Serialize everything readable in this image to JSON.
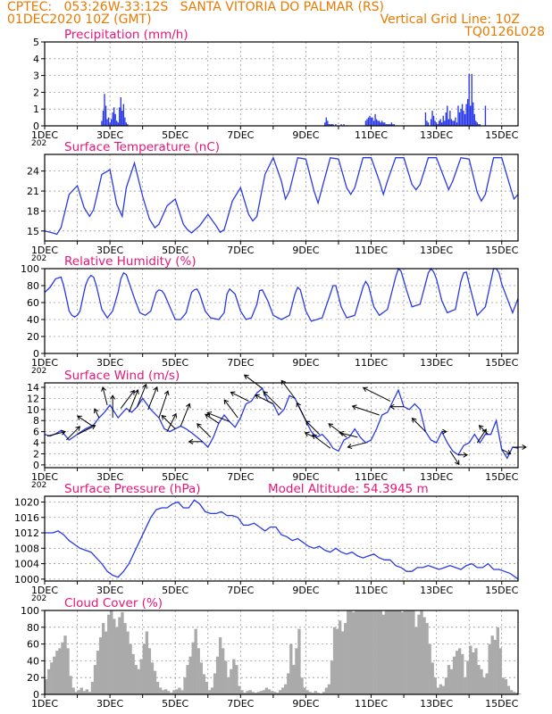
{
  "header": {
    "line1_left": "CPTEC:   053:26W-33:12S   SANTA VITORIA DO PALMAR (RS)",
    "line2_left": "01DEC2020 10Z (GMT)",
    "line2_right": "Vertical Grid Line: 10Z",
    "line3_right": "TQ0126L028"
  },
  "x_tick_labels": [
    "1DEC",
    "3DEC",
    "5DEC",
    "7DEC",
    "9DEC",
    "11DEC",
    "13DEC",
    "15DEC"
  ],
  "year_stub": "202",
  "colors": {
    "title": "#e8157a",
    "header": "#e87a00",
    "line": "#2a39e6",
    "cloud": "#aaaaaa",
    "arrow": "#000000"
  },
  "chart_data": [
    {
      "type": "bar",
      "id": "precip",
      "title": "Precipitation (mm/h)",
      "ylim": [
        0,
        5
      ],
      "yticks": [
        0,
        1,
        2,
        3,
        4,
        5
      ],
      "x_unit": "hours since 01DEC2020 10Z",
      "x": [
        42,
        43,
        44,
        45,
        46,
        47,
        48,
        49,
        50,
        51,
        52,
        53,
        54,
        55,
        56,
        57,
        58,
        59,
        60,
        61,
        206,
        207,
        208,
        209,
        210,
        211,
        212,
        214,
        218,
        220,
        236,
        237,
        238,
        239,
        240,
        241,
        242,
        243,
        244,
        245,
        246,
        247,
        248,
        249,
        250,
        251,
        252,
        253,
        254,
        255,
        256,
        257,
        280,
        281,
        282,
        284,
        285,
        286,
        287,
        288,
        289,
        290,
        291,
        292,
        293,
        294,
        295,
        296,
        297,
        298,
        299,
        300,
        301,
        302,
        303,
        304,
        305,
        306,
        307,
        308,
        309,
        310,
        311,
        312,
        313,
        314,
        315,
        316,
        317,
        318,
        319,
        320,
        324
      ],
      "values": [
        0.3,
        0.9,
        1.9,
        1.2,
        0.4,
        0.5,
        0.2,
        0.4,
        0.8,
        1.1,
        0.7,
        0.3,
        0.2,
        1.1,
        1.7,
        0.9,
        1.3,
        0.5,
        0.2,
        0.1,
        0.2,
        0.5,
        0.3,
        0.1,
        0.1,
        0.1,
        0.1,
        0.1,
        0.1,
        0.1,
        0.3,
        0.4,
        0.5,
        0.6,
        0.5,
        0.5,
        0.3,
        0.7,
        0.4,
        0.3,
        0.3,
        0.2,
        0.3,
        0.2,
        0.2,
        0.1,
        0.1,
        0.1,
        0.1,
        0.2,
        0.1,
        0.1,
        0.8,
        0.3,
        0.2,
        0.4,
        0.9,
        0.6,
        0.3,
        0.2,
        0.1,
        0.3,
        0.4,
        0.2,
        0.6,
        0.3,
        0.8,
        1.2,
        0.4,
        0.9,
        0.4,
        0.3,
        0.3,
        0.5,
        0.2,
        1.2,
        0.8,
        1.0,
        1.3,
        0.9,
        0.7,
        1.3,
        1.6,
        3.1,
        1.2,
        3.1,
        1.4,
        0.7,
        0.3,
        0.2,
        0.1,
        0.1,
        1.2
      ]
    },
    {
      "type": "line",
      "id": "temp",
      "title": "Surface Temperature (nC)",
      "ylim": [
        13.5,
        26.5
      ],
      "yticks": [
        15,
        18,
        21,
        24
      ],
      "x": [
        0,
        6,
        9,
        12,
        18,
        24,
        29,
        33,
        36,
        42,
        48,
        53,
        57,
        60,
        66,
        72,
        77,
        81,
        84,
        90,
        96,
        102,
        105,
        108,
        114,
        120,
        126,
        129,
        132,
        138,
        144,
        150,
        153,
        156,
        162,
        168,
        174,
        177,
        180,
        186,
        192,
        198,
        201,
        204,
        210,
        216,
        222,
        225,
        228,
        234,
        240,
        246,
        249,
        252,
        258,
        264,
        270,
        273,
        276,
        282,
        288,
        294,
        297,
        300,
        306,
        312,
        318,
        321,
        324,
        330,
        336,
        342,
        345,
        348
      ],
      "values": [
        15,
        14.7,
        14.5,
        15.5,
        20.5,
        21.8,
        18.5,
        17.2,
        18.2,
        23.5,
        24.2,
        19,
        17.2,
        21.5,
        25.2,
        20.2,
        16.8,
        15.5,
        16,
        18.8,
        19.8,
        16,
        15.2,
        14.7,
        15.8,
        17.5,
        15.8,
        14.8,
        15.2,
        19.5,
        21.5,
        17.5,
        16.5,
        17.2,
        23.5,
        26,
        22.5,
        19.8,
        21,
        26,
        25.8,
        21,
        19.2,
        21.5,
        26,
        25.8,
        21.5,
        20.5,
        21.5,
        26,
        26,
        22.5,
        20.5,
        22.5,
        26,
        26,
        22,
        21.2,
        22,
        26,
        26,
        22.8,
        21.2,
        22.5,
        26,
        25.8,
        20.8,
        19.5,
        20.5,
        26,
        26,
        21.8,
        19.8,
        20.5
      ]
    },
    {
      "type": "line",
      "id": "rh",
      "title": "Relative Humidity (%)",
      "ylim": [
        0,
        100
      ],
      "yticks": [
        0,
        20,
        40,
        60,
        80,
        100
      ],
      "x": [
        0,
        4,
        8,
        12,
        14,
        16,
        18,
        20,
        22,
        24,
        26,
        28,
        30,
        32,
        34,
        36,
        38,
        42,
        46,
        50,
        54,
        56,
        58,
        60,
        66,
        70,
        74,
        78,
        82,
        84,
        86,
        88,
        92,
        96,
        100,
        104,
        108,
        110,
        112,
        114,
        118,
        122,
        128,
        132,
        134,
        136,
        140,
        144,
        148,
        152,
        156,
        158,
        160,
        164,
        168,
        174,
        180,
        184,
        186,
        188,
        192,
        196,
        204,
        210,
        212,
        214,
        218,
        222,
        228,
        234,
        236,
        238,
        242,
        246,
        252,
        258,
        260,
        262,
        266,
        270,
        276,
        282,
        284,
        286,
        288,
        292,
        296,
        302,
        306,
        308,
        310,
        314,
        318,
        324,
        330,
        332,
        334,
        336,
        340,
        344,
        348
      ],
      "values": [
        72,
        78,
        88,
        90,
        80,
        65,
        50,
        45,
        43,
        45,
        50,
        65,
        80,
        88,
        92,
        90,
        80,
        52,
        42,
        50,
        72,
        88,
        95,
        93,
        65,
        48,
        45,
        50,
        72,
        75,
        74,
        70,
        55,
        40,
        40,
        48,
        72,
        75,
        76,
        70,
        50,
        42,
        40,
        48,
        70,
        76,
        70,
        50,
        40,
        42,
        58,
        74,
        75,
        62,
        45,
        40,
        45,
        70,
        78,
        75,
        50,
        38,
        42,
        70,
        80,
        80,
        55,
        42,
        45,
        78,
        85,
        80,
        55,
        45,
        52,
        90,
        100,
        97,
        75,
        55,
        58,
        95,
        100,
        96,
        88,
        62,
        48,
        52,
        85,
        95,
        96,
        70,
        45,
        55,
        100,
        100,
        95,
        82,
        65,
        48,
        65
      ]
    },
    {
      "type": "line",
      "id": "wind",
      "title": "Surface Wind (m/s)",
      "ylim": [
        -0.5,
        14.8
      ],
      "yticks": [
        0,
        2,
        4,
        6,
        8,
        10,
        12,
        14
      ],
      "x": [
        0,
        4,
        8,
        12,
        18,
        24,
        30,
        36,
        40,
        44,
        48,
        54,
        60,
        64,
        68,
        72,
        78,
        84,
        88,
        92,
        96,
        100,
        104,
        108,
        112,
        116,
        120,
        124,
        128,
        132,
        136,
        140,
        144,
        148,
        152,
        156,
        160,
        164,
        168,
        172,
        176,
        180,
        184,
        188,
        192,
        196,
        200,
        204,
        208,
        212,
        216,
        220,
        224,
        228,
        232,
        236,
        240,
        244,
        248,
        252,
        256,
        260,
        264,
        268,
        272,
        276,
        280,
        284,
        288,
        292,
        296,
        300,
        304,
        308,
        312,
        316,
        320,
        324,
        328,
        332,
        336,
        340,
        344,
        348
      ],
      "values": [
        5.5,
        5.2,
        5.6,
        6.2,
        4.5,
        5.5,
        6.5,
        7.2,
        8.5,
        9.5,
        10.8,
        8.5,
        10.2,
        9.5,
        10.5,
        12,
        10,
        8.5,
        6.5,
        6,
        6.5,
        7,
        6.5,
        5.8,
        5,
        4.2,
        3.2,
        5,
        7.5,
        9,
        7.8,
        6.8,
        8.5,
        11,
        11.5,
        13,
        13.8,
        11.5,
        11,
        9,
        10,
        12.5,
        12,
        10,
        8,
        6,
        5,
        5.5,
        4.5,
        3,
        2.5,
        4.5,
        5,
        6.5,
        5,
        4,
        4.5,
        6.5,
        9,
        9.5,
        11.5,
        13.5,
        10.5,
        10,
        11,
        10,
        6,
        4.5,
        4,
        6,
        4,
        2.5,
        1.8,
        3.5,
        4,
        5.5,
        4,
        5.5,
        5.5,
        8,
        2.8,
        1.2,
        3.2,
        3
      ]
    },
    {
      "type": "line",
      "id": "pres",
      "title": "Surface Pressure (hPa)",
      "annotation": "Model Altitude: 54.3945 m",
      "ylim": [
        999.5,
        1021.5
      ],
      "yticks": [
        1000,
        1004,
        1008,
        1012,
        1016,
        1020
      ],
      "x": [
        0,
        6,
        10,
        14,
        18,
        22,
        26,
        30,
        34,
        38,
        42,
        46,
        50,
        54,
        58,
        62,
        66,
        70,
        74,
        78,
        82,
        86,
        90,
        94,
        98,
        102,
        106,
        110,
        114,
        118,
        122,
        126,
        130,
        134,
        138,
        142,
        146,
        150,
        154,
        158,
        162,
        166,
        170,
        174,
        178,
        182,
        186,
        190,
        194,
        198,
        202,
        206,
        210,
        214,
        218,
        222,
        226,
        230,
        234,
        238,
        242,
        246,
        250,
        254,
        258,
        262,
        266,
        270,
        274,
        278,
        282,
        286,
        290,
        294,
        298,
        302,
        306,
        310,
        314,
        318,
        322,
        326,
        330,
        334,
        338,
        342,
        346,
        348
      ],
      "values": [
        1012,
        1012,
        1012.5,
        1011.5,
        1010,
        1009,
        1008,
        1007.5,
        1007,
        1005.5,
        1004,
        1002,
        1001,
        1000.5,
        1002,
        1004,
        1007,
        1010,
        1013,
        1016,
        1018,
        1018.5,
        1018.5,
        1019.5,
        1020,
        1018.5,
        1018.5,
        1020.5,
        1019.5,
        1017.5,
        1017,
        1017,
        1017.5,
        1016.5,
        1016.5,
        1016,
        1014,
        1014,
        1014.5,
        1013.5,
        1012.5,
        1013.5,
        1013.5,
        1011.5,
        1011,
        1010,
        1010.5,
        1009.5,
        1008.5,
        1008,
        1008.5,
        1007.5,
        1007,
        1008,
        1007,
        1006.5,
        1007,
        1006,
        1005.5,
        1006,
        1006.5,
        1005.5,
        1005,
        1005,
        1003.5,
        1003,
        1002,
        1002,
        1003,
        1003,
        1003.5,
        1003,
        1002.5,
        1003,
        1003.5,
        1003,
        1002.5,
        1003.5,
        1004,
        1003,
        1003,
        1004,
        1002.5,
        1002.5,
        1002,
        1001.5,
        1000.5,
        1000
      ]
    },
    {
      "type": "area",
      "id": "cloud",
      "title": "Cloud Cover (%)",
      "ylim": [
        0,
        100
      ],
      "yticks": [
        0,
        20,
        40,
        60,
        80,
        100
      ],
      "x": [
        0,
        2,
        4,
        6,
        8,
        10,
        12,
        14,
        16,
        18,
        20,
        22,
        24,
        26,
        28,
        30,
        32,
        34,
        36,
        38,
        40,
        42,
        44,
        46,
        48,
        50,
        52,
        54,
        56,
        58,
        60,
        62,
        64,
        66,
        68,
        70,
        72,
        74,
        76,
        78,
        80,
        82,
        84,
        86,
        88,
        90,
        92,
        94,
        96,
        98,
        100,
        102,
        104,
        106,
        108,
        110,
        112,
        114,
        116,
        118,
        120,
        122,
        124,
        126,
        128,
        130,
        132,
        134,
        136,
        138,
        140,
        142,
        144,
        146,
        148,
        150,
        152,
        154,
        156,
        158,
        160,
        162,
        164,
        166,
        168,
        170,
        172,
        174,
        176,
        178,
        180,
        182,
        184,
        186,
        188,
        190,
        192,
        194,
        196,
        198,
        200,
        202,
        204,
        206,
        208,
        210,
        212,
        214,
        216,
        218,
        220,
        222,
        224,
        226,
        228,
        230,
        232,
        234,
        236,
        238,
        240,
        242,
        244,
        246,
        248,
        250,
        252,
        254,
        256,
        258,
        260,
        262,
        264,
        266,
        268,
        270,
        272,
        274,
        276,
        278,
        280,
        282,
        284,
        286,
        288,
        290,
        292,
        294,
        296,
        298,
        300,
        302,
        304,
        306,
        308,
        310,
        312,
        314,
        316,
        318,
        320,
        322,
        324,
        326,
        328,
        330,
        332,
        334,
        336,
        338,
        340,
        342,
        344,
        346,
        348
      ],
      "values": [
        18,
        30,
        38,
        45,
        52,
        55,
        62,
        70,
        55,
        22,
        8,
        3,
        5,
        8,
        4,
        6,
        3,
        15,
        35,
        52,
        68,
        85,
        75,
        95,
        100,
        90,
        80,
        92,
        98,
        85,
        75,
        60,
        48,
        35,
        30,
        42,
        60,
        75,
        55,
        38,
        28,
        15,
        8,
        5,
        6,
        4,
        2,
        5,
        6,
        8,
        5,
        20,
        35,
        45,
        62,
        78,
        55,
        38,
        24,
        15,
        5,
        8,
        25,
        45,
        68,
        55,
        40,
        20,
        30,
        42,
        35,
        10,
        5,
        2,
        4,
        5,
        3,
        2,
        3,
        4,
        5,
        8,
        6,
        4,
        3,
        2,
        5,
        8,
        12,
        25,
        60,
        35,
        55,
        78,
        20,
        8,
        5,
        3,
        2,
        4,
        2,
        1,
        3,
        8,
        12,
        40,
        80,
        78,
        88,
        75,
        85,
        100,
        100,
        98,
        100,
        100,
        100,
        100,
        100,
        100,
        100,
        100,
        100,
        100,
        95,
        100,
        100,
        100,
        100,
        100,
        100,
        98,
        100,
        100,
        100,
        100,
        80,
        95,
        100,
        92,
        85,
        60,
        38,
        20,
        8,
        12,
        10,
        20,
        35,
        30,
        45,
        52,
        55,
        48,
        20,
        40,
        58,
        50,
        55,
        35,
        30,
        20,
        25,
        60,
        70,
        65,
        80,
        55,
        20,
        18,
        10,
        5,
        3,
        2,
        1
      ]
    }
  ],
  "wind_barbs": {
    "x": [
      2,
      16,
      24,
      34,
      40,
      46,
      50,
      56,
      62,
      68,
      76,
      84,
      90,
      96,
      100,
      116,
      122,
      128,
      136,
      142,
      150,
      160,
      168,
      174,
      184,
      192,
      198,
      202,
      210,
      222,
      230,
      236,
      246,
      254,
      264,
      280,
      292,
      298,
      304,
      318,
      326,
      336,
      344
    ],
    "u": [
      4,
      3,
      4,
      -3,
      -1,
      -1,
      0,
      3,
      2,
      2,
      2,
      2,
      2,
      -3,
      2,
      -3,
      -3,
      -3,
      -5,
      -3,
      -4,
      -4,
      -4,
      -4,
      -3,
      -2,
      -2,
      -3,
      -4,
      -4,
      -4,
      -4,
      -6,
      -6,
      -3,
      -3,
      1,
      2,
      2,
      2,
      -2,
      2,
      3
    ],
    "v": [
      1,
      3,
      2,
      2,
      2,
      4,
      5,
      4,
      5,
      5,
      5,
      6,
      4,
      3,
      5,
      0,
      3,
      2,
      2,
      4,
      2,
      3,
      2,
      4,
      4,
      4,
      1,
      3,
      3,
      3,
      1,
      -1,
      2,
      3,
      0,
      3,
      0,
      -3,
      0,
      3,
      2,
      -1,
      0
    ]
  }
}
